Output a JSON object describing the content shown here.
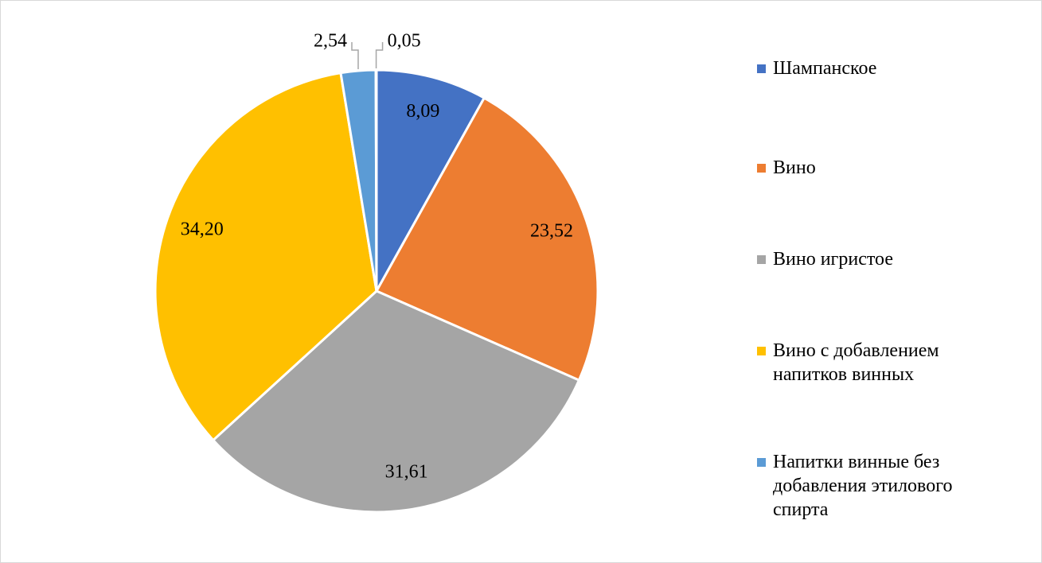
{
  "chart_data": {
    "type": "pie",
    "categories": [
      "Шампанское",
      "Вино",
      "Вино игристое",
      "Вино с добавлением напитков винных",
      "Напитки винные без добавления этилового спирта",
      null
    ],
    "values": [
      8.09,
      23.52,
      31.61,
      34.2,
      2.54,
      0.05
    ],
    "value_labels": [
      "8,09",
      "23,52",
      "31,61",
      "34,20",
      "2,54",
      "0,05"
    ],
    "colors": [
      "#4472c4",
      "#ed7d31",
      "#a5a5a5",
      "#ffc000",
      "#5b9bd5",
      "#70ad47"
    ],
    "legend": "right"
  }
}
